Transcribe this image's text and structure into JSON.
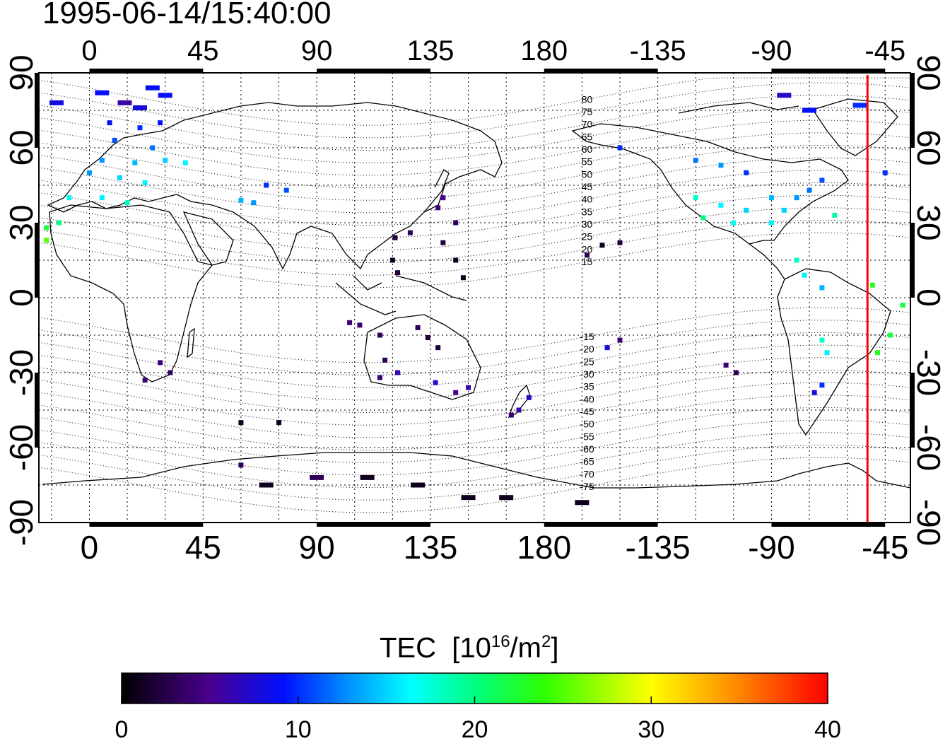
{
  "timestamp": "1995-06-14/15:40:00",
  "map": {
    "lon_ticks": [
      "0",
      "45",
      "90",
      "135",
      "180",
      "-135",
      "-90",
      "-45"
    ],
    "lat_ticks": [
      "90",
      "60",
      "30",
      "0",
      "-30",
      "-60",
      "-90"
    ],
    "lon_range": [
      -20,
      325
    ],
    "lat_range": [
      -90,
      90
    ],
    "grid": true,
    "terminator_lon": -52,
    "contour_labels": [
      "80",
      "75",
      "70",
      "65",
      "60",
      "55",
      "50",
      "45",
      "40",
      "35",
      "30",
      "25",
      "20",
      "15",
      "-15",
      "-20",
      "-25",
      "-30",
      "-35",
      "-40",
      "-45",
      "-50",
      "-55",
      "-60",
      "-65",
      "-70",
      "-75"
    ]
  },
  "colorbar": {
    "label_main": "TEC",
    "label_unit_pre": "[10",
    "label_unit_sup": "16",
    "label_unit_mid": "/m",
    "label_unit_sup2": "2",
    "label_unit_post": "]",
    "ticks": [
      "0",
      "10",
      "20",
      "30",
      "40"
    ],
    "range": [
      0,
      40
    ]
  },
  "chart_data": {
    "type": "scatter",
    "title": "1995-06-14/15:40:00",
    "xlabel": "",
    "ylabel": "",
    "xlim": [
      -20,
      325
    ],
    "ylim": [
      -90,
      90
    ],
    "value_label": "TEC [10^16/m^2]",
    "value_range": [
      0,
      40
    ],
    "points": [
      {
        "lon": -13,
        "lat": 78,
        "tec": 8
      },
      {
        "lon": 5,
        "lat": 82,
        "tec": 9
      },
      {
        "lon": 25,
        "lat": 84,
        "tec": 9
      },
      {
        "lon": 30,
        "lat": 81,
        "tec": 9
      },
      {
        "lon": 14,
        "lat": 78,
        "tec": 6
      },
      {
        "lon": 20,
        "lat": 76,
        "tec": 8
      },
      {
        "lon": 8,
        "lat": 70,
        "tec": 9
      },
      {
        "lon": 20,
        "lat": 68,
        "tec": 10
      },
      {
        "lon": 28,
        "lat": 70,
        "tec": 9
      },
      {
        "lon": 10,
        "lat": 63,
        "tec": 11
      },
      {
        "lon": 25,
        "lat": 60,
        "tec": 12
      },
      {
        "lon": 5,
        "lat": 55,
        "tec": 13
      },
      {
        "lon": 18,
        "lat": 54,
        "tec": 14
      },
      {
        "lon": 30,
        "lat": 55,
        "tec": 15
      },
      {
        "lon": 38,
        "lat": 54,
        "tec": 16
      },
      {
        "lon": 0,
        "lat": 50,
        "tec": 13
      },
      {
        "lon": 12,
        "lat": 48,
        "tec": 15
      },
      {
        "lon": 22,
        "lat": 46,
        "tec": 16
      },
      {
        "lon": -8,
        "lat": 40,
        "tec": 17
      },
      {
        "lon": 5,
        "lat": 40,
        "tec": 16
      },
      {
        "lon": 15,
        "lat": 38,
        "tec": 18
      },
      {
        "lon": -17,
        "lat": 28,
        "tec": 22
      },
      {
        "lon": -12,
        "lat": 30,
        "tec": 20
      },
      {
        "lon": -17,
        "lat": 23,
        "tec": 25
      },
      {
        "lon": 78,
        "lat": 43,
        "tec": 11
      },
      {
        "lon": 70,
        "lat": 45,
        "tec": 10
      },
      {
        "lon": 65,
        "lat": 38,
        "tec": 13
      },
      {
        "lon": 60,
        "lat": 39,
        "tec": 14
      },
      {
        "lon": 138,
        "lat": 36,
        "tec": 4
      },
      {
        "lon": 140,
        "lat": 40,
        "tec": 5
      },
      {
        "lon": 145,
        "lat": 30,
        "tec": 3
      },
      {
        "lon": 140,
        "lat": 22,
        "tec": 2
      },
      {
        "lon": 127,
        "lat": 26,
        "tec": 3
      },
      {
        "lon": 121,
        "lat": 24,
        "tec": 2
      },
      {
        "lon": 120,
        "lat": 15,
        "tec": 1
      },
      {
        "lon": 122,
        "lat": 10,
        "tec": 2
      },
      {
        "lon": 145,
        "lat": 15,
        "tec": 1
      },
      {
        "lon": 148,
        "lat": 8,
        "tec": 1
      },
      {
        "lon": 107,
        "lat": -11,
        "tec": 4
      },
      {
        "lon": 103,
        "lat": -10,
        "tec": 4
      },
      {
        "lon": 115,
        "lat": -15,
        "tec": 3
      },
      {
        "lon": 117,
        "lat": -25,
        "tec": 3
      },
      {
        "lon": 130,
        "lat": -12,
        "tec": 3
      },
      {
        "lon": 134,
        "lat": -16,
        "tec": 2
      },
      {
        "lon": 138,
        "lat": -20,
        "tec": 2
      },
      {
        "lon": 115,
        "lat": -32,
        "tec": 4
      },
      {
        "lon": 122,
        "lat": -30,
        "tec": 6
      },
      {
        "lon": 137,
        "lat": -34,
        "tec": 7
      },
      {
        "lon": 145,
        "lat": -38,
        "tec": 5
      },
      {
        "lon": 150,
        "lat": -36,
        "tec": 6
      },
      {
        "lon": 174,
        "lat": -40,
        "tec": 7
      },
      {
        "lon": 170,
        "lat": -45,
        "tec": 6
      },
      {
        "lon": 167,
        "lat": -47,
        "tec": 4
      },
      {
        "lon": 203,
        "lat": 21,
        "tec": 1
      },
      {
        "lon": 197,
        "lat": 17,
        "tec": 3
      },
      {
        "lon": 210,
        "lat": 22,
        "tec": 2
      },
      {
        "lon": 210,
        "lat": -17,
        "tec": 4
      },
      {
        "lon": 205,
        "lat": -20,
        "tec": 8
      },
      {
        "lon": 28,
        "lat": -26,
        "tec": 4
      },
      {
        "lon": 22,
        "lat": -33,
        "tec": 4
      },
      {
        "lon": 32,
        "lat": -30,
        "tec": 3
      },
      {
        "lon": 60,
        "lat": -50,
        "tec": 1
      },
      {
        "lon": 75,
        "lat": -50,
        "tec": 1
      },
      {
        "lon": 110,
        "lat": -72,
        "tec": 1
      },
      {
        "lon": 130,
        "lat": -75,
        "tec": 1
      },
      {
        "lon": 150,
        "lat": -80,
        "tec": 1
      },
      {
        "lon": 165,
        "lat": -80,
        "tec": 1
      },
      {
        "lon": 195,
        "lat": -82,
        "tec": 1
      },
      {
        "lon": 70,
        "lat": -75,
        "tec": 1
      },
      {
        "lon": 60,
        "lat": -67,
        "tec": 3
      },
      {
        "lon": 90,
        "lat": -72,
        "tec": 3
      },
      {
        "lon": -120,
        "lat": 55,
        "tec": 12
      },
      {
        "lon": -110,
        "lat": 53,
        "tec": 13
      },
      {
        "lon": -100,
        "lat": 50,
        "tec": 10
      },
      {
        "lon": -120,
        "lat": 40,
        "tec": 18
      },
      {
        "lon": -110,
        "lat": 37,
        "tec": 16
      },
      {
        "lon": -100,
        "lat": 35,
        "tec": 15
      },
      {
        "lon": -90,
        "lat": 40,
        "tec": 14
      },
      {
        "lon": -80,
        "lat": 40,
        "tec": 13
      },
      {
        "lon": -75,
        "lat": 43,
        "tec": 12
      },
      {
        "lon": -117,
        "lat": 32,
        "tec": 20
      },
      {
        "lon": -85,
        "lat": 35,
        "tec": 15
      },
      {
        "lon": -70,
        "lat": 47,
        "tec": 11
      },
      {
        "lon": -105,
        "lat": 30,
        "tec": 17
      },
      {
        "lon": -90,
        "lat": 30,
        "tec": 16
      },
      {
        "lon": -150,
        "lat": 60,
        "tec": 10
      },
      {
        "lon": -65,
        "lat": 33,
        "tec": 19
      },
      {
        "lon": -75,
        "lat": 75,
        "tec": 9
      },
      {
        "lon": -55,
        "lat": 77,
        "tec": 10
      },
      {
        "lon": -85,
        "lat": 81,
        "tec": 7
      },
      {
        "lon": -45,
        "lat": 50,
        "tec": 10
      },
      {
        "lon": -80,
        "lat": 15,
        "tec": 18
      },
      {
        "lon": -77,
        "lat": 9,
        "tec": 16
      },
      {
        "lon": -70,
        "lat": 4,
        "tec": 14
      },
      {
        "lon": -50,
        "lat": 5,
        "tec": 23
      },
      {
        "lon": -38,
        "lat": -3,
        "tec": 22
      },
      {
        "lon": -43,
        "lat": -15,
        "tec": 22
      },
      {
        "lon": -48,
        "lat": -22,
        "tec": 23
      },
      {
        "lon": -70,
        "lat": -17,
        "tec": 18
      },
      {
        "lon": -68,
        "lat": -22,
        "tec": 16
      },
      {
        "lon": -73,
        "lat": -38,
        "tec": 8
      },
      {
        "lon": -70,
        "lat": -35,
        "tec": 10
      },
      {
        "lon": -108,
        "lat": -27,
        "tec": 4
      },
      {
        "lon": -104,
        "lat": -30,
        "tec": 3
      }
    ]
  }
}
